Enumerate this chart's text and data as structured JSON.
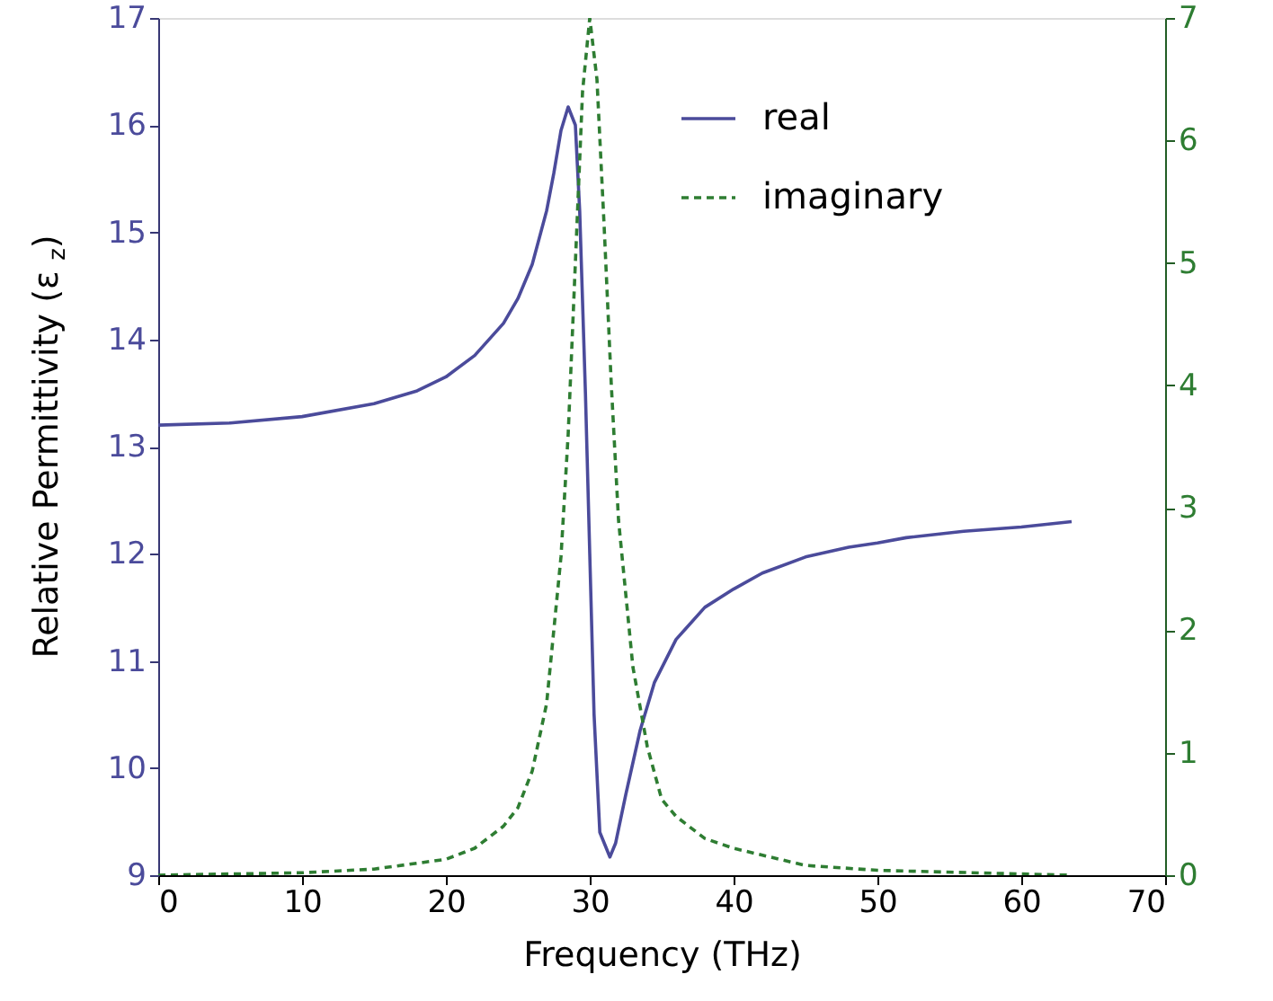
{
  "chart_data": {
    "type": "line",
    "xlabel": "Frequency (THz)",
    "ylabel": "Relative Permittivity (ε$_{z}$)",
    "xlim": [
      0,
      70
    ],
    "xticks": [
      0,
      10,
      20,
      30,
      40,
      50,
      60,
      70
    ],
    "ylim": [
      9,
      17
    ],
    "yticks": [
      9,
      10,
      11,
      12,
      13,
      14,
      15,
      16,
      17
    ],
    "y2lim": [
      0,
      7
    ],
    "y2ticks": [
      0,
      1,
      2,
      3,
      4,
      5,
      6,
      7
    ],
    "grid": false,
    "legend": "top right",
    "marker": "none",
    "series": [
      {
        "name": "real",
        "color": "#4b4b9b",
        "line_style": "solid",
        "x": [
          0,
          5,
          10,
          15,
          18,
          20,
          22,
          24,
          25,
          26,
          27,
          27.5,
          28,
          28.5,
          29,
          29.3,
          29.7,
          30,
          30.3,
          30.7,
          31.4,
          31.8,
          32.5,
          33.5,
          34.5,
          36,
          38,
          40,
          42,
          45,
          48,
          50,
          52,
          56,
          60,
          63.5
        ],
        "values": [
          13.2,
          13.22,
          13.28,
          13.4,
          13.52,
          13.65,
          13.85,
          14.15,
          14.38,
          14.7,
          15.2,
          15.55,
          15.95,
          16.17,
          16.0,
          15.2,
          13.5,
          12.0,
          10.5,
          9.4,
          9.17,
          9.3,
          9.75,
          10.35,
          10.8,
          11.2,
          11.5,
          11.67,
          11.82,
          11.97,
          12.06,
          12.1,
          12.15,
          12.21,
          12.25,
          12.3
        ]
      },
      {
        "name": "imaginary",
        "color": "#2e7d32",
        "line_style": "dashed",
        "axis": "y2",
        "x": [
          0,
          10,
          15,
          20,
          22,
          24,
          25,
          26,
          27,
          28,
          28.5,
          29,
          29.5,
          30,
          30.5,
          31,
          31.5,
          32,
          33,
          34,
          35,
          36,
          38,
          40,
          45,
          50,
          60,
          63.5
        ],
        "values": [
          0,
          0.02,
          0.05,
          0.13,
          0.22,
          0.4,
          0.55,
          0.85,
          1.4,
          2.6,
          3.6,
          5.0,
          6.4,
          7.0,
          6.5,
          5.3,
          4.0,
          2.9,
          1.7,
          1.05,
          0.62,
          0.48,
          0.3,
          0.22,
          0.08,
          0.04,
          0.01,
          0
        ]
      }
    ]
  }
}
